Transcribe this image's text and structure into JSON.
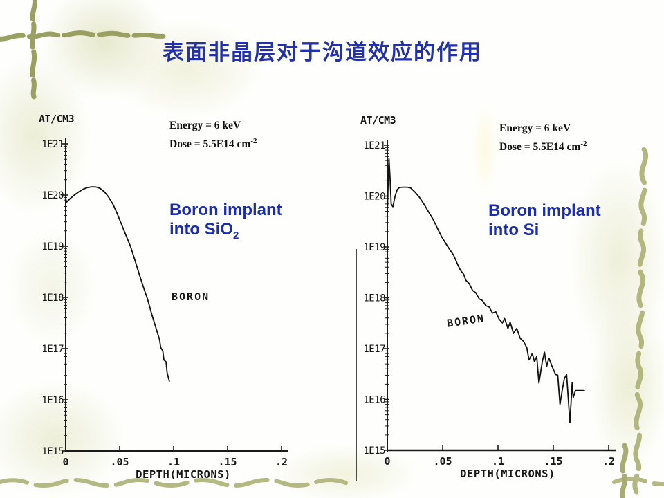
{
  "slide": {
    "title": "表面非晶层对于沟道效应的作用"
  },
  "colors": {
    "title_blue": "#2231a8",
    "caption_blue": "#1a2db2",
    "ink": "#161616",
    "vine_dark": "#99a062",
    "vine_light": "#b4b983",
    "vine_mid": "#a7ac74"
  },
  "charts": [
    {
      "unit_label": "AT/CM3",
      "energy_label": "Energy = 6 keV",
      "dose_label": "Dose = 5.5E14 cm",
      "dose_exponent": "-2",
      "series_label": "BORON",
      "caption": {
        "line1": "Boron implant",
        "line2_prefix": "into SiO",
        "line2_sub": "2"
      },
      "x_axis_label": "DEPTH(MICRONS)",
      "x_ticks": [
        "0",
        ".05",
        ".1",
        ".15",
        ".2"
      ],
      "y_ticks": [
        "1E21",
        "1E20",
        "1E19",
        "1E18",
        "1E17",
        "1E16",
        "1E15"
      ]
    },
    {
      "unit_label": "AT/CM3",
      "energy_label": "Energy = 6 keV",
      "dose_label": "Dose = 5.5E14 cm",
      "dose_exponent": "-2",
      "series_label": "BORON",
      "caption": {
        "line1": "Boron implant",
        "line2_prefix": "into Si",
        "line2_sub": ""
      },
      "x_axis_label": "DEPTH(MICRONS)",
      "x_ticks": [
        "0",
        ".05",
        ".1",
        ".15",
        ".2"
      ],
      "y_ticks": [
        "1E21",
        "1E20",
        "1E19",
        "1E18",
        "1E17",
        "1E16",
        "1E15"
      ]
    }
  ],
  "chart_data": [
    {
      "type": "line",
      "title": "Boron implant into SiO2",
      "xlabel": "DEPTH(MICRONS)",
      "ylabel": "AT/CM3",
      "x_range": [
        0,
        0.2
      ],
      "y_range": [
        1000000000000000.0,
        1e+21
      ],
      "y_scale": "log",
      "x_tick_values": [
        0,
        0.05,
        0.1,
        0.15,
        0.2
      ],
      "annotations": [
        "Energy = 6 keV",
        "Dose = 5.5E14 cm-2",
        "BORON"
      ],
      "series": [
        {
          "name": "BORON",
          "points": [
            [
              0,
              7e+19
            ],
            [
              0.004,
              8.5e+19
            ],
            [
              0.008,
              1e+20
            ],
            [
              0.012,
              1.15e+20
            ],
            [
              0.016,
              1.3e+20
            ],
            [
              0.02,
              1.4e+20
            ],
            [
              0.024,
              1.45e+20
            ],
            [
              0.028,
              1.44e+20
            ],
            [
              0.032,
              1.35e+20
            ],
            [
              0.036,
              1.15e+20
            ],
            [
              0.04,
              9e+19
            ],
            [
              0.044,
              6.5e+19
            ],
            [
              0.048,
              4.2e+19
            ],
            [
              0.052,
              2.6e+19
            ],
            [
              0.056,
              1.6e+19
            ],
            [
              0.06,
              1e+19
            ],
            [
              0.064,
              5.5e+18
            ],
            [
              0.068,
              2.9e+18
            ],
            [
              0.072,
              1.6e+18
            ],
            [
              0.076,
              9e+17
            ],
            [
              0.08,
              4.5e+17
            ],
            [
              0.084,
              2.4e+17
            ],
            [
              0.087,
              1.5e+17
            ],
            [
              0.088,
              1.05e+17
            ],
            [
              0.09,
              9e+16
            ],
            [
              0.091,
              6e+16
            ],
            [
              0.093,
              5.5e+16
            ],
            [
              0.094,
              3.4e+16
            ],
            [
              0.096,
              2.3e+16
            ]
          ]
        }
      ]
    },
    {
      "type": "line",
      "title": "Boron implant into Si",
      "xlabel": "DEPTH(MICRONS)",
      "ylabel": "AT/CM3",
      "x_range": [
        0,
        0.2
      ],
      "y_range": [
        1000000000000000.0,
        1e+21
      ],
      "y_scale": "log",
      "x_tick_values": [
        0,
        0.05,
        0.1,
        0.15,
        0.2
      ],
      "annotations": [
        "Energy = 6 keV",
        "Dose = 5.5E14 cm-2",
        "BORON"
      ],
      "series": [
        {
          "name": "BORON",
          "points": [
            [
              0,
              4.5e+19
            ],
            [
              0.0008,
              2e+20
            ],
            [
              0.0015,
              5.5e+20
            ],
            [
              0.0025,
              2.2e+20
            ],
            [
              0.0035,
              7e+19
            ],
            [
              0.005,
              6.2e+19
            ],
            [
              0.007,
              1e+20
            ],
            [
              0.009,
              1.35e+20
            ],
            [
              0.011,
              1.48e+20
            ],
            [
              0.014,
              1.5e+20
            ],
            [
              0.018,
              1.5e+20
            ],
            [
              0.021,
              1.45e+20
            ],
            [
              0.025,
              1.2e+20
            ],
            [
              0.029,
              9.5e+19
            ],
            [
              0.033,
              7e+19
            ],
            [
              0.037,
              5e+19
            ],
            [
              0.041,
              3.6e+19
            ],
            [
              0.045,
              2.4e+19
            ],
            [
              0.049,
              1.6e+19
            ],
            [
              0.053,
              1.15e+19
            ],
            [
              0.057,
              8.5e+18
            ],
            [
              0.06,
              6.8e+18
            ],
            [
              0.063,
              4.8e+18
            ],
            [
              0.066,
              3.5e+18
            ],
            [
              0.069,
              2.9e+18
            ],
            [
              0.071,
              2.2e+18
            ],
            [
              0.074,
              1.9e+18
            ],
            [
              0.077,
              1.4e+18
            ],
            [
              0.08,
              1.25e+18
            ],
            [
              0.083,
              9.5e+17
            ],
            [
              0.086,
              8.8e+17
            ],
            [
              0.089,
              7e+17
            ],
            [
              0.092,
              6.6e+17
            ],
            [
              0.095,
              5e+17
            ],
            [
              0.098,
              5.3e+17
            ],
            [
              0.101,
              3.8e+17
            ],
            [
              0.104,
              3.2e+17
            ],
            [
              0.106,
              3.9e+17
            ],
            [
              0.109,
              2.5e+17
            ],
            [
              0.111,
              3.3e+17
            ],
            [
              0.114,
              2e+17
            ],
            [
              0.117,
              2.5e+17
            ],
            [
              0.12,
              1.6e+17
            ],
            [
              0.123,
              1.4e+17
            ],
            [
              0.126,
              1.05e+17
            ],
            [
              0.128,
              6e+16
            ],
            [
              0.131,
              8e+16
            ],
            [
              0.133,
              5.5e+16
            ],
            [
              0.135,
              7e+16
            ],
            [
              0.137,
              2.1e+16
            ],
            [
              0.14,
              5.5e+16
            ],
            [
              0.142,
              8.5e+16
            ],
            [
              0.144,
              4.5e+16
            ],
            [
              0.146,
              6.5e+16
            ],
            [
              0.149,
              4.4e+16
            ],
            [
              0.152,
              3.1e+16
            ],
            [
              0.154,
              3e+16
            ],
            [
              0.156,
              8000000000000000.0
            ],
            [
              0.158,
              1.5e+16
            ],
            [
              0.16,
              2.6e+16
            ],
            [
              0.162,
              3.1e+16
            ],
            [
              0.165,
              3500000000000000.0
            ],
            [
              0.167,
              2.1e+16
            ],
            [
              0.168,
              1.1e+16
            ],
            [
              0.17,
              1.5e+16
            ],
            [
              0.174,
              1.5e+16
            ],
            [
              0.178,
              1.5e+16
            ]
          ]
        }
      ]
    }
  ]
}
